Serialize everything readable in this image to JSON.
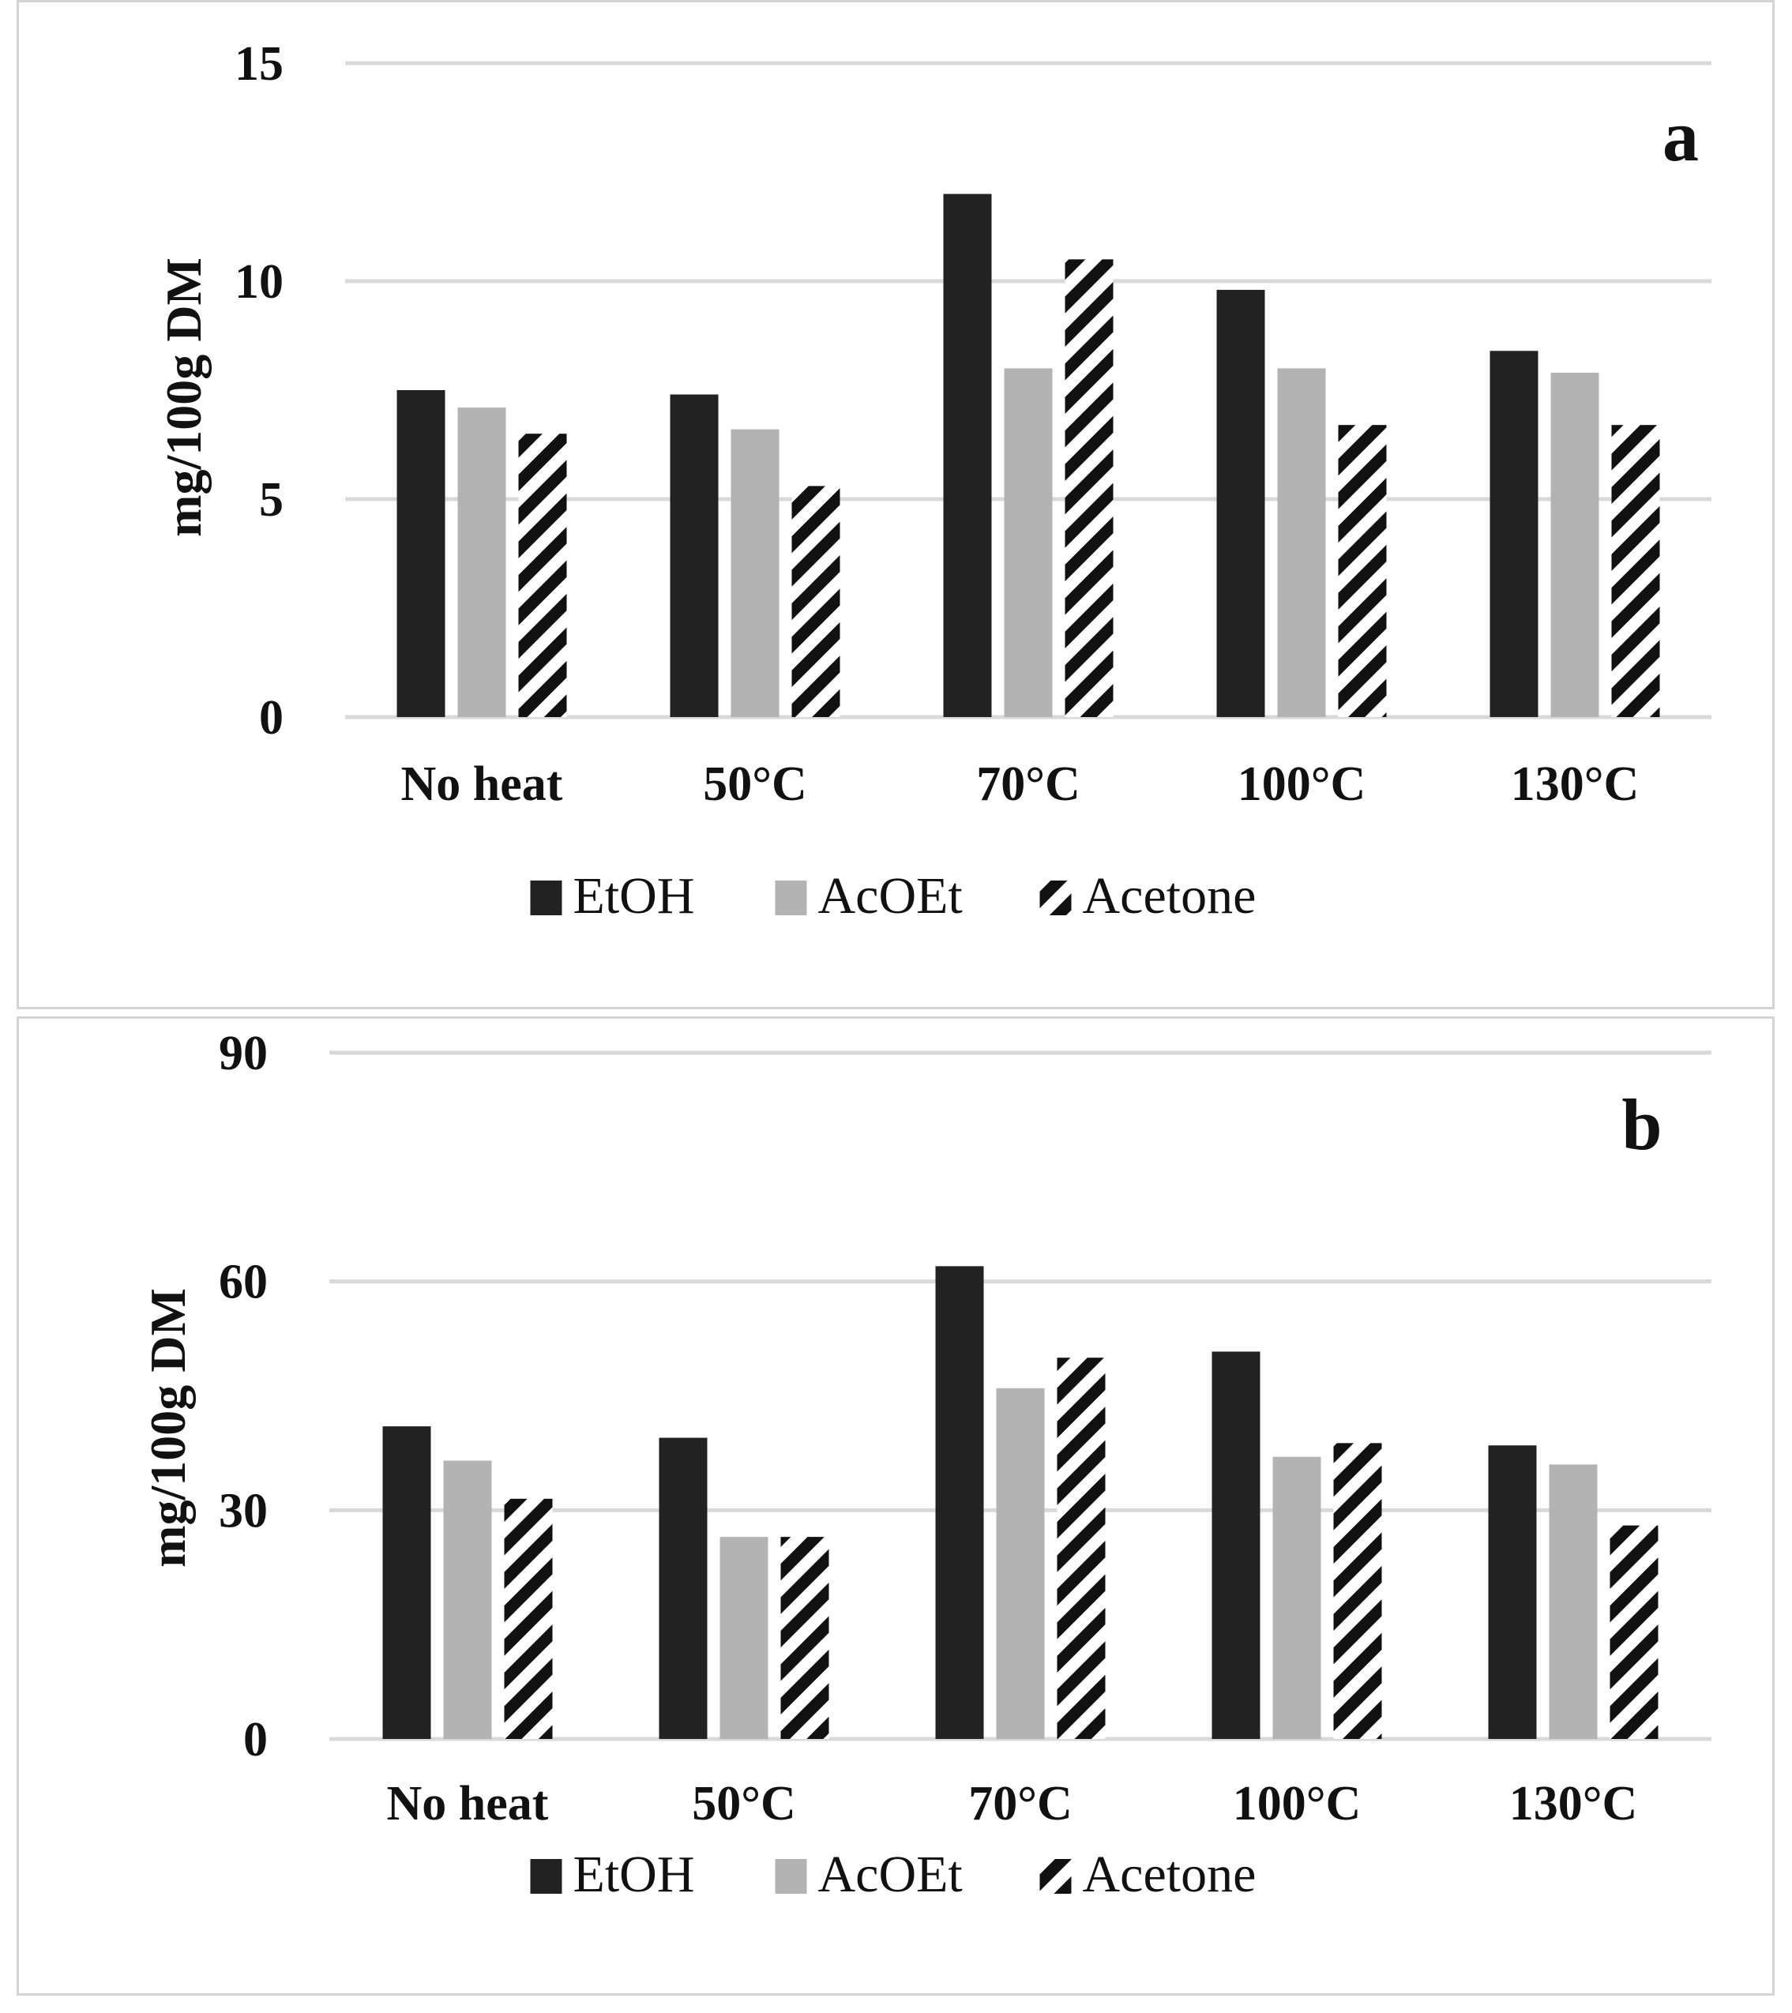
{
  "colors": {
    "etoh": "#222222",
    "acoet": "#b3b3b3",
    "acetone_stripe": "#111111",
    "grid": "#d9d9d9"
  },
  "chart_data": [
    {
      "type": "bar",
      "panel_label": "a",
      "ylabel": "mg/100g DM",
      "ylim": [
        0,
        15
      ],
      "yticks": [
        "0",
        "5",
        "10",
        "15"
      ],
      "categories": [
        "No heat",
        "50°C",
        "70°C",
        "100°C",
        "130°C"
      ],
      "series": [
        {
          "name": "EtOH",
          "values": [
            7.5,
            7.4,
            12.0,
            9.8,
            8.4
          ]
        },
        {
          "name": "AcOEt",
          "values": [
            7.1,
            6.6,
            8.0,
            8.0,
            7.9
          ]
        },
        {
          "name": "Acetone",
          "values": [
            6.5,
            5.3,
            10.5,
            6.7,
            6.7
          ]
        }
      ],
      "legend": [
        "EtOH",
        "AcOEt",
        "Acetone"
      ]
    },
    {
      "type": "bar",
      "panel_label": "b",
      "ylabel": "mg/100g DM",
      "ylim": [
        0,
        90
      ],
      "yticks": [
        "0",
        "30",
        "60",
        "90"
      ],
      "categories": [
        "No heat",
        "50°C",
        "70°C",
        "100°C",
        "130°C"
      ],
      "series": [
        {
          "name": "EtOH",
          "values": [
            41,
            39.5,
            62,
            50.8,
            38.5
          ]
        },
        {
          "name": "AcOEt",
          "values": [
            36.5,
            26.5,
            46,
            37,
            36
          ]
        },
        {
          "name": "Acetone",
          "values": [
            31.5,
            26.5,
            50,
            38.8,
            28
          ]
        }
      ],
      "legend": [
        "EtOH",
        "AcOEt",
        "Acetone"
      ]
    }
  ]
}
